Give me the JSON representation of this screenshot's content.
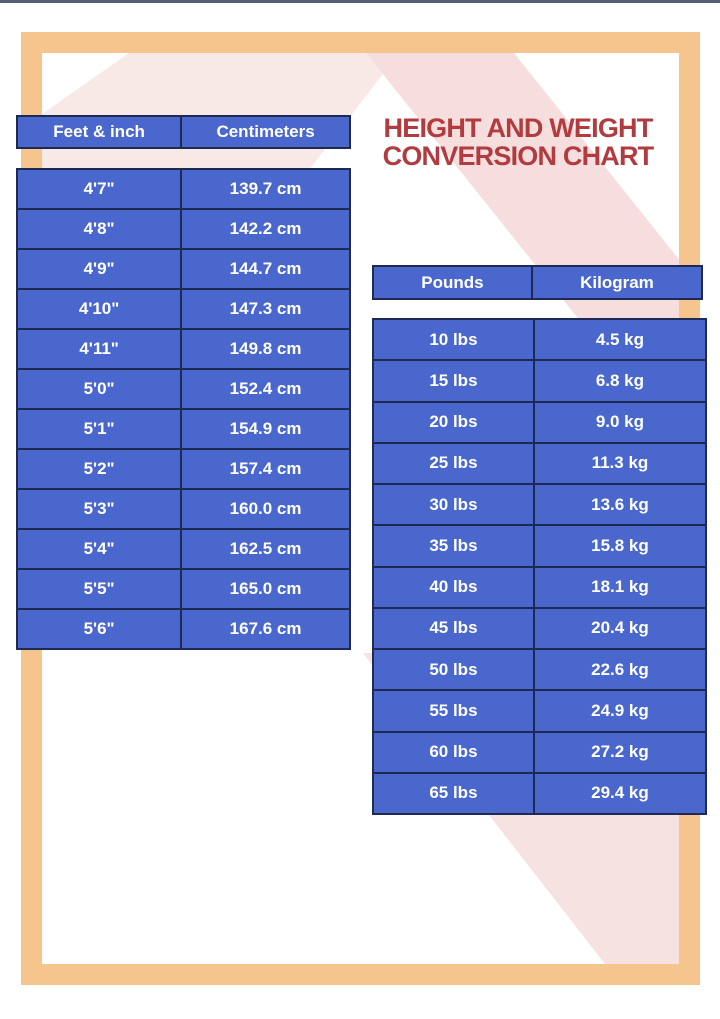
{
  "title": {
    "line1": "HEIGHT AND WEIGHT",
    "line2": "CONVERSION CHART"
  },
  "height_table": {
    "headers": [
      "Feet & inch",
      "Centimeters"
    ],
    "rows": [
      [
        "4'7\"",
        "139.7 cm"
      ],
      [
        "4'8\"",
        "142.2 cm"
      ],
      [
        "4'9\"",
        "144.7 cm"
      ],
      [
        "4'10\"",
        "147.3 cm"
      ],
      [
        "4'11\"",
        "149.8 cm"
      ],
      [
        "5'0\"",
        "152.4 cm"
      ],
      [
        "5'1\"",
        "154.9 cm"
      ],
      [
        "5'2\"",
        "157.4 cm"
      ],
      [
        "5'3\"",
        "160.0 cm"
      ],
      [
        "5'4\"",
        "162.5 cm"
      ],
      [
        "5'5\"",
        "165.0 cm"
      ],
      [
        "5'6\"",
        "167.6 cm"
      ]
    ]
  },
  "weight_table": {
    "headers": [
      "Pounds",
      "Kilogram"
    ],
    "rows": [
      [
        "10 lbs",
        "4.5 kg"
      ],
      [
        "15 lbs",
        "6.8 kg"
      ],
      [
        "20 lbs",
        "9.0 kg"
      ],
      [
        "25 lbs",
        "11.3 kg"
      ],
      [
        "30 lbs",
        "13.6 kg"
      ],
      [
        "35 lbs",
        "15.8 kg"
      ],
      [
        "40 lbs",
        "18.1 kg"
      ],
      [
        "45 lbs",
        "20.4 kg"
      ],
      [
        "50 lbs",
        "22.6 kg"
      ],
      [
        "55 lbs",
        "24.9 kg"
      ],
      [
        "60 lbs",
        "27.2 kg"
      ],
      [
        "65 lbs",
        "29.4 kg"
      ]
    ]
  },
  "palette": {
    "frame_peach": "#f6c58e",
    "cell_blue": "#4a67cd",
    "border_navy": "#1f2a52",
    "title_red": "#b23b40",
    "stripe_pink": "#f5dedd",
    "text_white": "#ffffff"
  }
}
